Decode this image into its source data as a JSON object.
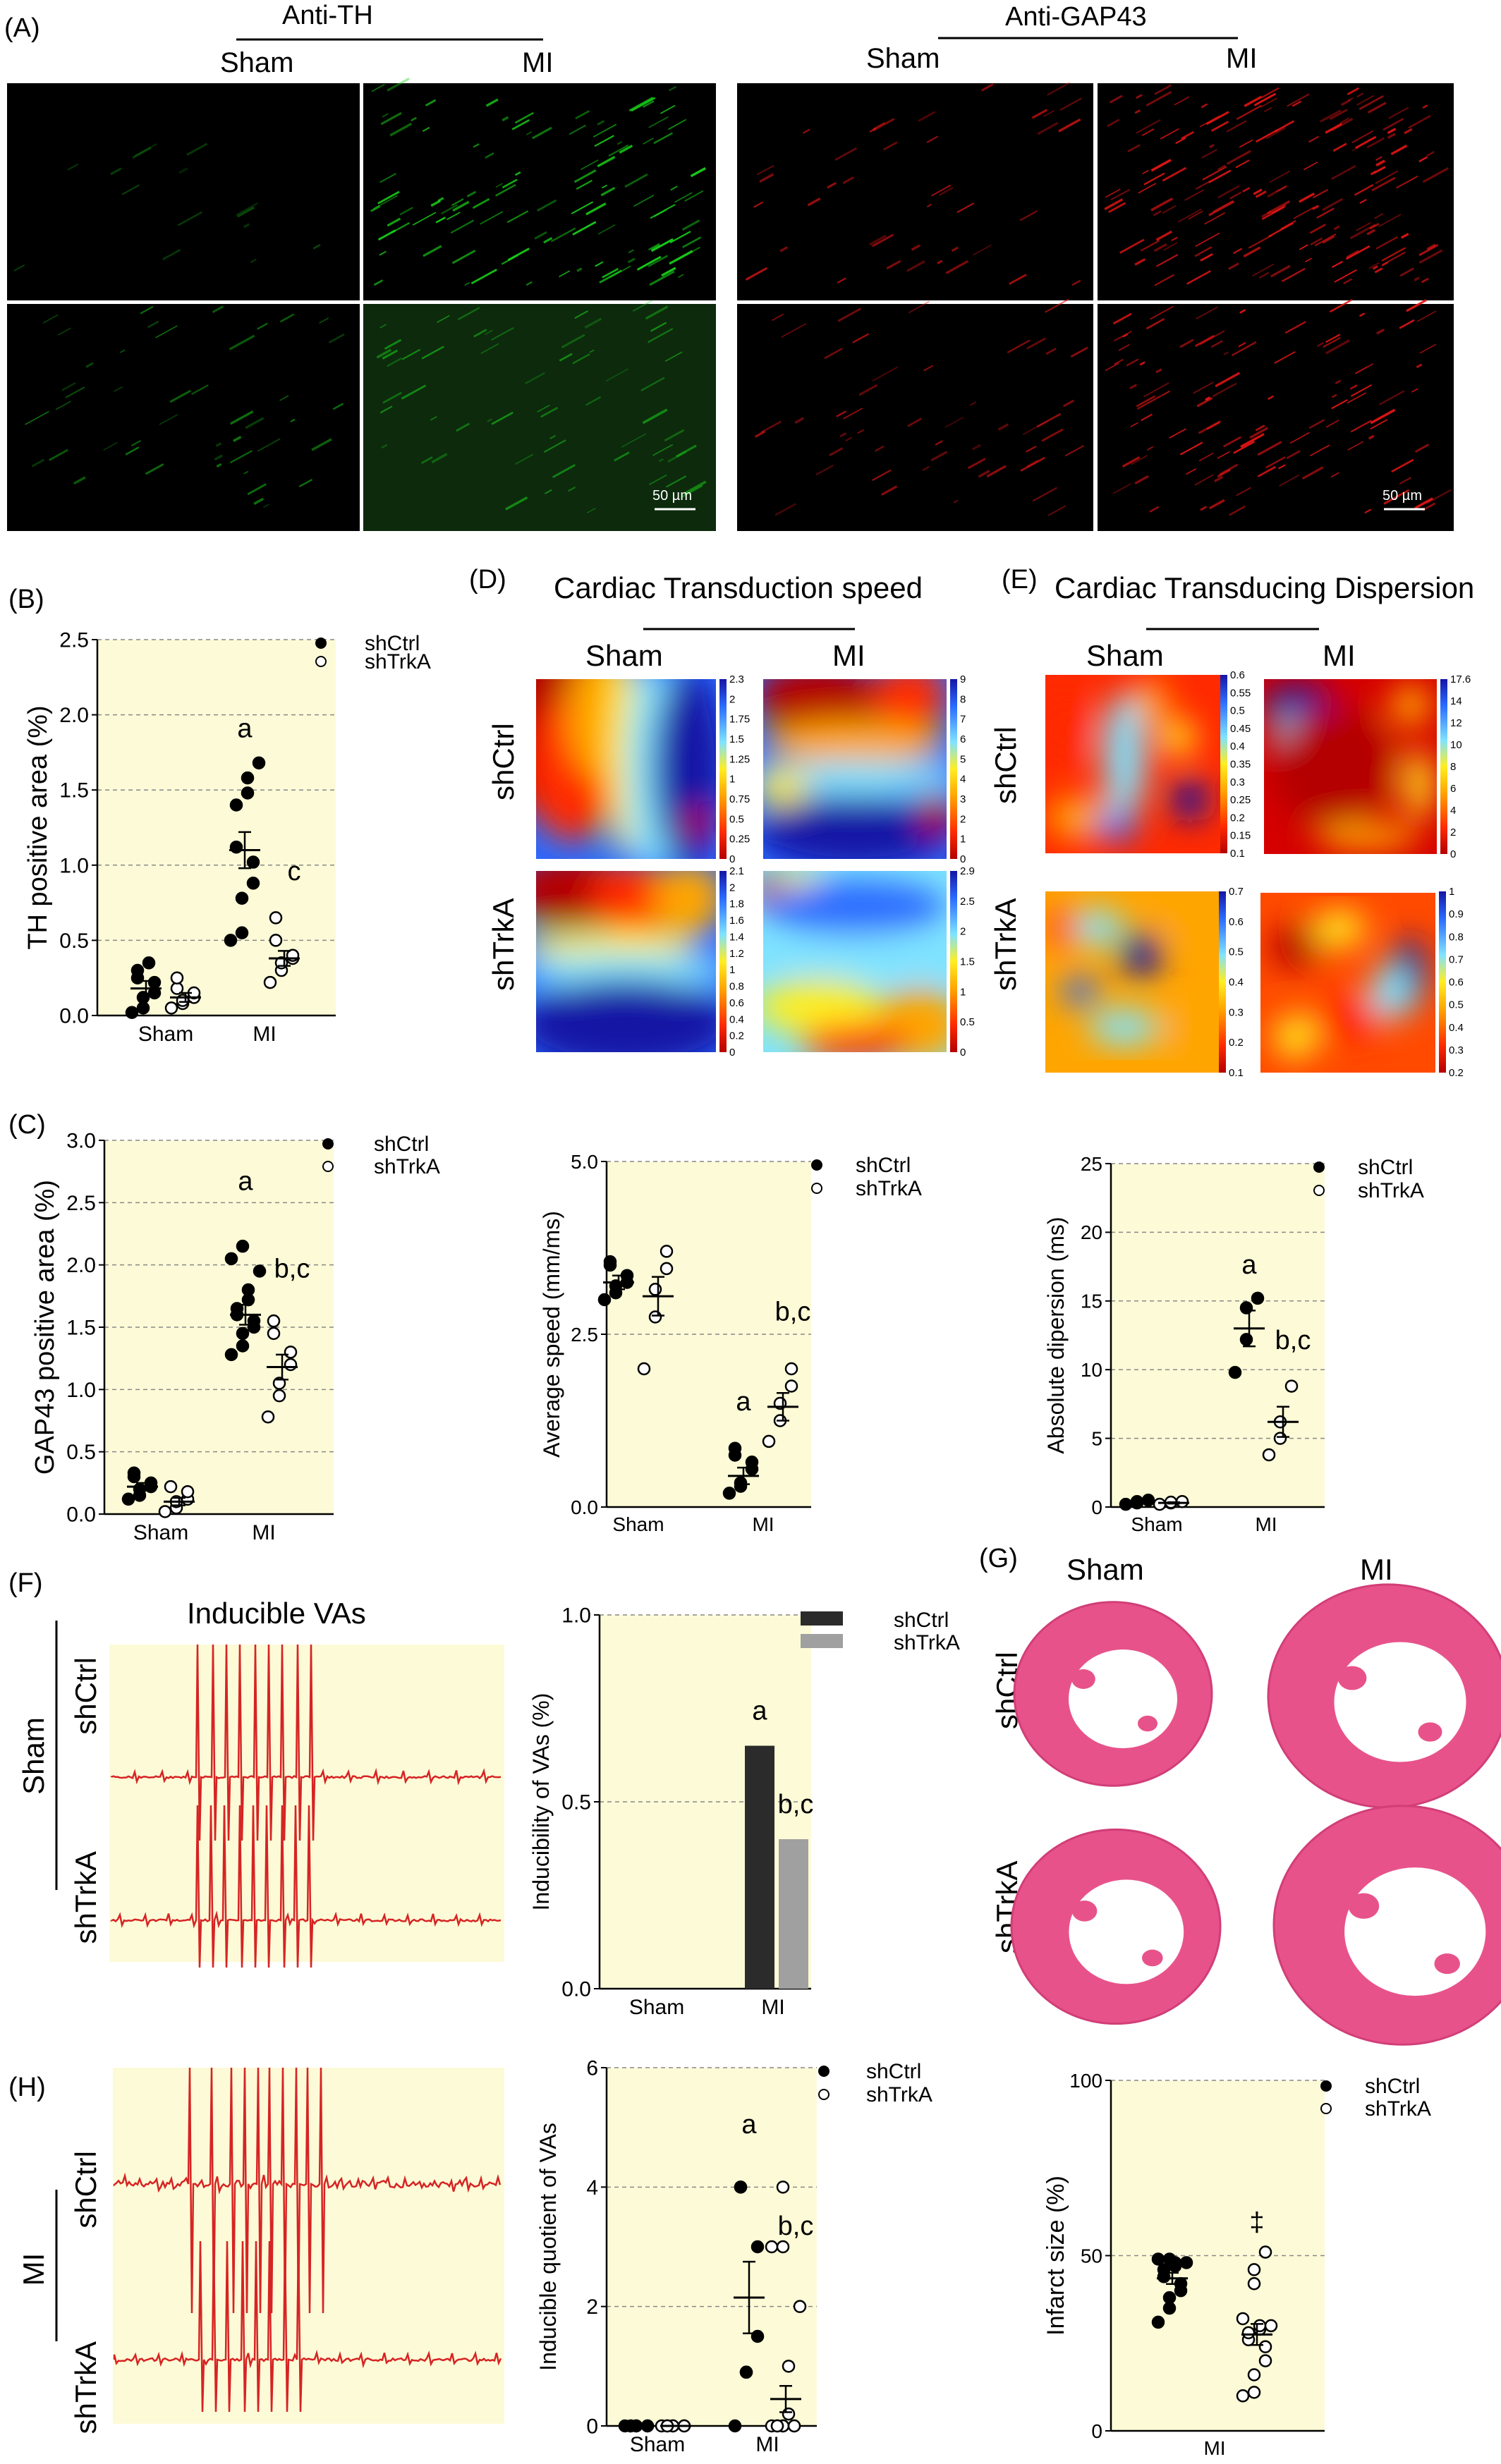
{
  "panel_letters": {
    "A": "(A)",
    "B": "(B)",
    "C": "(C)",
    "D": "(D)",
    "E": "(E)",
    "F": "(F)",
    "G": "(G)",
    "H": "(H)"
  },
  "colors": {
    "plot_bg": "#fdfbd7",
    "filled": "#000000",
    "open": "#ffffff",
    "trace": "#d62424",
    "bar_shctrl": "#2b2b2b",
    "bar_shtrka": "#a0a0a0",
    "fluor_th": "#19d419",
    "fluor_gap": "#e81515"
  },
  "panel_A": {
    "th_title": "Anti-TH",
    "gap_title": "Anti-GAP43",
    "sham": "Sham",
    "mi": "MI",
    "scalebar": "50 µm"
  },
  "panel_D": {
    "title": "Cardiac Transduction speed",
    "sham": "Sham",
    "mi": "MI",
    "row1": "shCtrl",
    "row2": "shTrkA",
    "scales": [
      {
        "ticks": [
          "2.3",
          "2",
          "1.75",
          "1.5",
          "1.25",
          "1",
          "0.75",
          "0.5",
          "0.25",
          "0"
        ]
      },
      {
        "ticks": [
          "9",
          "8",
          "7",
          "6",
          "5",
          "4",
          "3",
          "2",
          "1",
          "0"
        ]
      },
      {
        "ticks": [
          "2.1",
          "2",
          "1.8",
          "1.6",
          "1.4",
          "1.2",
          "1",
          "0.8",
          "0.6",
          "0.4",
          "0.2",
          "0"
        ]
      },
      {
        "ticks": [
          "2.9",
          "2.5",
          "2",
          "1.5",
          "1",
          "0.5",
          "0"
        ]
      }
    ]
  },
  "panel_E": {
    "title": "Cardiac Transducing Dispersion",
    "sham": "Sham",
    "mi": "MI",
    "row1": "shCtrl",
    "row2": "shTrkA",
    "scales": [
      {
        "ticks": [
          "0.6",
          "0.55",
          "0.5",
          "0.45",
          "0.4",
          "0.35",
          "0.3",
          "0.25",
          "0.2",
          "0.15",
          "0.1"
        ]
      },
      {
        "ticks": [
          "17.6",
          "14",
          "12",
          "10",
          "8",
          "6",
          "4",
          "2",
          "0"
        ]
      },
      {
        "ticks": [
          "0.7",
          "0.6",
          "0.5",
          "0.4",
          "0.3",
          "0.2",
          "0.1"
        ]
      },
      {
        "ticks": [
          "1",
          "0.9",
          "0.8",
          "0.7",
          "0.6",
          "0.5",
          "0.4",
          "0.3",
          "0.2"
        ]
      }
    ]
  },
  "panel_F": {
    "title": "Inducible VAs",
    "sham": "Sham",
    "row1": "shCtrl",
    "row2": "shTrkA"
  },
  "panel_G": {
    "sham": "Sham",
    "mi": "MI",
    "row1": "shCtrl",
    "row2": "shTrkA"
  },
  "panel_H": {
    "mi": "MI",
    "row1": "shCtrl",
    "row2": "shTrkA"
  },
  "chart_data": [
    {
      "id": "B",
      "type": "scatter",
      "ylabel": "TH positive area (%)",
      "ylim": [
        0,
        2.5
      ],
      "yticks": [
        "0.0",
        "0.5",
        "1.0",
        "1.5",
        "2.0",
        "2.5"
      ],
      "categories": [
        "Sham",
        "MI"
      ],
      "legend": [
        "shCtrl",
        "shTrkA"
      ],
      "series": [
        {
          "name": "shCtrl",
          "values": [
            [
              0.02,
              0.05,
              0.12,
              0.15,
              0.22,
              0.25,
              0.3,
              0.35
            ],
            [
              0.5,
              0.55,
              0.78,
              0.88,
              1.02,
              1.12,
              1.4,
              1.48,
              1.58,
              1.68
            ]
          ],
          "mean": [
            0.18,
            1.1
          ],
          "sem": [
            0.05,
            0.12
          ]
        },
        {
          "name": "shTrkA",
          "values": [
            [
              0.05,
              0.08,
              0.1,
              0.12,
              0.15,
              0.18,
              0.25
            ],
            [
              0.22,
              0.3,
              0.35,
              0.38,
              0.4,
              0.5,
              0.65
            ]
          ],
          "mean": [
            0.12,
            0.38
          ],
          "sem": [
            0.03,
            0.05
          ]
        }
      ],
      "annotations": [
        "a",
        "c"
      ]
    },
    {
      "id": "C1",
      "type": "scatter",
      "ylabel": "GAP43 positive area (%)",
      "ylim": [
        0,
        3
      ],
      "yticks": [
        "0.0",
        "0.5",
        "1.0",
        "1.5",
        "2.0",
        "2.5",
        "3.0"
      ],
      "categories": [
        "Sham",
        "MI"
      ],
      "legend": [
        "shCtrl",
        "shTrkA"
      ],
      "series": [
        {
          "name": "shCtrl",
          "values": [
            [
              0.12,
              0.15,
              0.2,
              0.22,
              0.25,
              0.3,
              0.33
            ],
            [
              1.28,
              1.35,
              1.45,
              1.5,
              1.55,
              1.6,
              1.65,
              1.72,
              1.8,
              1.95,
              2.05,
              2.15
            ]
          ],
          "mean": [
            0.22,
            1.6
          ],
          "sem": [
            0.03,
            0.08
          ]
        },
        {
          "name": "shTrkA",
          "values": [
            [
              0.02,
              0.05,
              0.1,
              0.12,
              0.18,
              0.22
            ],
            [
              0.78,
              0.95,
              1.05,
              1.2,
              1.3,
              1.45,
              1.55
            ]
          ],
          "mean": [
            0.1,
            1.18
          ],
          "sem": [
            0.03,
            0.1
          ]
        }
      ],
      "annotations": [
        "a",
        "b,c"
      ]
    },
    {
      "id": "C2",
      "type": "scatter",
      "ylabel": "Average speed  (mm/ms)",
      "ylim": [
        0,
        5
      ],
      "yticks": [
        "0.0",
        "2.5",
        "5.0"
      ],
      "categories": [
        "Sham",
        "MI"
      ],
      "legend": [
        "shCtrl",
        "shTrkA"
      ],
      "series": [
        {
          "name": "shCtrl",
          "values": [
            [
              3.0,
              3.1,
              3.2,
              3.25,
              3.35,
              3.5,
              3.55
            ],
            [
              0.2,
              0.3,
              0.35,
              0.55,
              0.65,
              0.75,
              0.85
            ]
          ],
          "mean": [
            3.25,
            0.45
          ],
          "sem": [
            0.1,
            0.12
          ]
        },
        {
          "name": "shTrkA",
          "values": [
            [
              2.0,
              2.75,
              3.15,
              3.45,
              3.7
            ],
            [
              0.95,
              1.25,
              1.5,
              1.75,
              2.0
            ]
          ],
          "mean": [
            3.05,
            1.45
          ],
          "sem": [
            0.28,
            0.2
          ]
        }
      ],
      "annotations": [
        "a",
        "b,c"
      ]
    },
    {
      "id": "C3",
      "type": "scatter",
      "ylabel": "Absolute dipersion (ms)",
      "ylim": [
        0,
        25
      ],
      "yticks": [
        "0",
        "5",
        "10",
        "15",
        "20",
        "25"
      ],
      "categories": [
        "Sham",
        "MI"
      ],
      "legend": [
        "shCtrl",
        "shTrkA"
      ],
      "series": [
        {
          "name": "shCtrl",
          "values": [
            [
              0.2,
              0.3,
              0.4,
              0.5
            ],
            [
              9.8,
              12.2,
              14.5,
              15.2
            ]
          ],
          "mean": [
            0.35,
            13.0
          ],
          "sem": [
            0.05,
            1.3
          ]
        },
        {
          "name": "shTrkA",
          "values": [
            [
              0.2,
              0.3,
              0.35,
              0.4
            ],
            [
              3.8,
              5.0,
              6.2,
              8.8
            ]
          ],
          "mean": [
            0.3,
            6.2
          ],
          "sem": [
            0.05,
            1.1
          ]
        }
      ],
      "annotations": [
        "a",
        "b,c"
      ]
    },
    {
      "id": "F",
      "type": "bar",
      "ylabel": "Inducibility of VAs  (%)",
      "ylim": [
        0,
        1
      ],
      "yticks": [
        "0.0",
        "0.5",
        "1.0"
      ],
      "categories": [
        "Sham",
        "MI"
      ],
      "legend": [
        "shCtrl",
        "shTrkA"
      ],
      "series": [
        {
          "name": "shCtrl",
          "values": [
            0,
            0.65
          ]
        },
        {
          "name": "shTrkA",
          "values": [
            0,
            0.4
          ]
        }
      ],
      "annotations": [
        "a",
        "b,c"
      ]
    },
    {
      "id": "H",
      "type": "scatter",
      "ylabel": "Inducible quotient of VAs",
      "ylim": [
        0,
        6
      ],
      "yticks": [
        "0",
        "2",
        "4",
        "6"
      ],
      "categories": [
        "Sham",
        "MI"
      ],
      "legend": [
        "shCtrl",
        "shTrkA"
      ],
      "series": [
        {
          "name": "shCtrl",
          "values": [
            [
              0,
              0,
              0,
              0,
              0,
              0,
              0
            ],
            [
              0,
              0.9,
              0.9,
              1.5,
              3.0,
              4.0,
              4.0
            ]
          ],
          "mean": [
            0,
            2.15
          ],
          "sem": [
            0,
            0.6
          ]
        },
        {
          "name": "shTrkA",
          "values": [
            [
              0,
              0,
              0,
              0,
              0,
              0,
              0
            ],
            [
              0,
              0,
              0,
              0,
              0,
              0,
              0,
              0.2,
              1.0,
              2.0,
              3.0,
              3.0,
              4.0
            ]
          ],
          "mean": [
            0,
            0.45
          ],
          "sem": [
            0,
            0.22
          ]
        }
      ],
      "annotations": [
        "a",
        "b,c"
      ]
    },
    {
      "id": "G",
      "type": "scatter",
      "ylabel": "Infarct size  (%)",
      "ylim": [
        0,
        100
      ],
      "yticks": [
        "0",
        "50",
        "100"
      ],
      "categories": [
        "MI"
      ],
      "legend": [
        "shCtrl",
        "shTrkA"
      ],
      "series": [
        {
          "name": "shCtrl",
          "values": [
            [
              31,
              35,
              38,
              40,
              42,
              44,
              46,
              47,
              48,
              48,
              49,
              49
            ]
          ],
          "mean": [
            43.5
          ],
          "sem": [
            1.6
          ]
        },
        {
          "name": "shTrkA",
          "values": [
            [
              10,
              11,
              16,
              20,
              24,
              26,
              28,
              29,
              30,
              30,
              32,
              42,
              46,
              51
            ]
          ],
          "mean": [
            27.5
          ],
          "sem": [
            3.0
          ]
        }
      ],
      "annotations": [
        "‡"
      ]
    }
  ]
}
